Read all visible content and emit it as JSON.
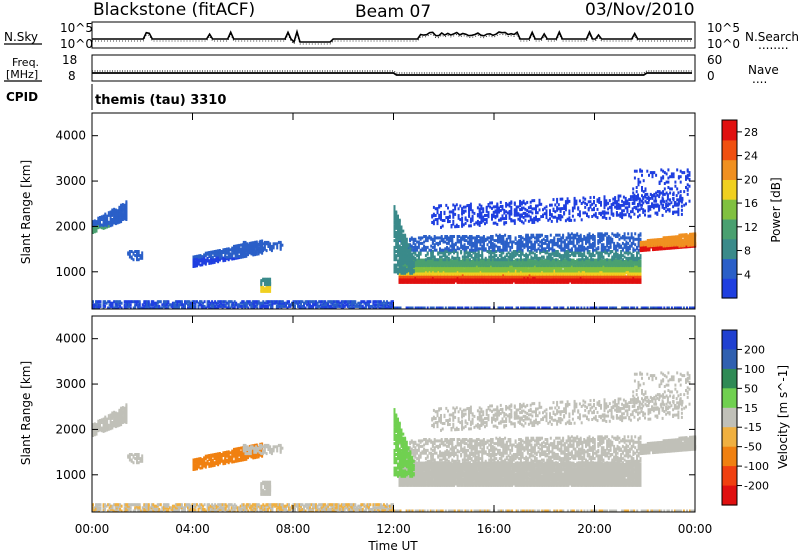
{
  "header": {
    "title": "Blackstone (fitACF)",
    "beam": "Beam 07",
    "date": "03/Nov/2010",
    "mode": "themis (tau) 3310"
  },
  "strip_labels": {
    "nsky": "N.Sky",
    "nsearch": "N.Search",
    "dots1": "........",
    "freq_a": "Freq.",
    "freq_b": "[MHz]",
    "nave": "Nave",
    "dots2": "....",
    "cpid": "CPID"
  },
  "strip_ticks": {
    "noise_left_top": "10^5",
    "noise_left_bottom": "10^0",
    "noise_right_top": "10^5",
    "noise_right_bottom": "10^0",
    "freq_left_top": "18",
    "freq_left_bottom": "8",
    "nave_right_top": "60",
    "nave_right_bottom": "0"
  },
  "colors": {
    "power_scale": [
      "#1f3fe0",
      "#2a5fc8",
      "#3a8a8a",
      "#4aa070",
      "#80c040",
      "#f0d020",
      "#f09020",
      "#f05010",
      "#e01010"
    ],
    "velocity_scale": [
      "#2040d0",
      "#3060b0",
      "#2f8a55",
      "#70d050",
      "#c0c0b8",
      "#f0b040",
      "#f08010",
      "#f04010",
      "#e01010"
    ],
    "gray_scatter": "#c0c0b8"
  },
  "chart_data": [
    {
      "type": "heatmap",
      "panel": "power",
      "ylabel": "Slant Range [km]",
      "yticks": [
        "1000",
        "2000",
        "3000",
        "4000"
      ],
      "ylim": [
        180,
        4500
      ],
      "colorbar_label": "Power [dB]",
      "colorbar_ticks": [
        "4",
        "8",
        "12",
        "16",
        "20",
        "24",
        "28"
      ],
      "colorbar_range": [
        0,
        30
      ]
    },
    {
      "type": "heatmap",
      "panel": "velocity",
      "ylabel": "Slant Range [km]",
      "yticks": [
        "1000",
        "2000",
        "3000",
        "4000"
      ],
      "ylim": [
        180,
        4500
      ],
      "colorbar_label": "Velocity [m s^-1]",
      "colorbar_ticks": [
        "200",
        "100",
        "50",
        "15",
        "-15",
        "-50",
        "-100",
        "-200"
      ]
    }
  ],
  "xaxis": {
    "label": "Time UT",
    "ticks": [
      "00:00",
      "04:00",
      "08:00",
      "12:00",
      "16:00",
      "20:00",
      "00:00"
    ]
  }
}
